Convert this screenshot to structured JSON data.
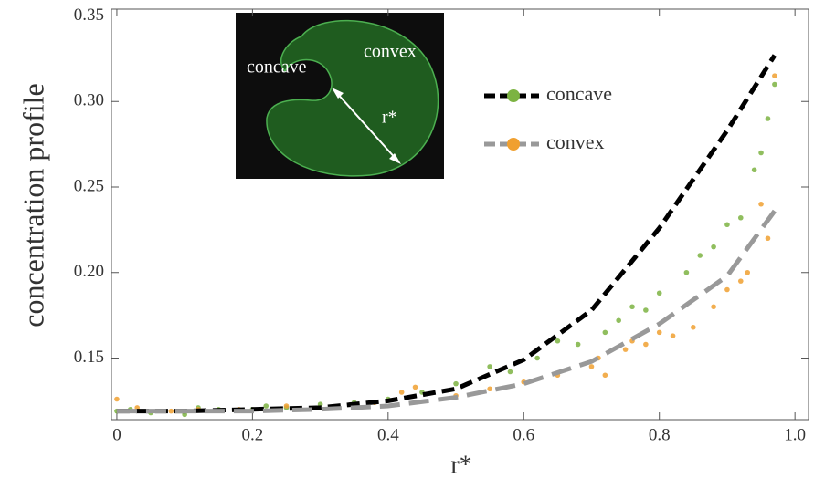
{
  "chart_data": {
    "type": "scatter",
    "y_label": "concentration profile",
    "x_label": "r*",
    "xlim": [
      -0.008,
      1.02
    ],
    "ylim": [
      0.114,
      0.354
    ],
    "xticks": [
      0,
      0.2,
      0.4,
      0.6,
      0.8,
      {
        "value": 1,
        "label": "1.0"
      }
    ],
    "yticks": [
      0.15,
      {
        "value": 0.2,
        "label": "0.20"
      },
      0.25,
      {
        "value": 0.3,
        "label": "0.30"
      },
      0.35
    ],
    "series": [
      {
        "name": "concave",
        "line_color": "#000000",
        "point_color": "#7cb342",
        "curve": {
          "x": [
            0,
            0.1,
            0.2,
            0.3,
            0.4,
            0.5,
            0.6,
            0.7,
            0.8,
            0.9,
            0.97
          ],
          "y": [
            0.119,
            0.119,
            0.12,
            0.121,
            0.125,
            0.132,
            0.149,
            0.178,
            0.226,
            0.283,
            0.327
          ]
        },
        "points": {
          "x": [
            0,
            0.02,
            0.05,
            0.1,
            0.12,
            0.15,
            0.2,
            0.22,
            0.25,
            0.3,
            0.35,
            0.4,
            0.45,
            0.5,
            0.55,
            0.58,
            0.62,
            0.65,
            0.68,
            0.72,
            0.74,
            0.76,
            0.78,
            0.8,
            0.84,
            0.86,
            0.88,
            0.9,
            0.92,
            0.94,
            0.95,
            0.96,
            0.97
          ],
          "y": [
            0.119,
            0.12,
            0.118,
            0.117,
            0.121,
            0.12,
            0.12,
            0.122,
            0.121,
            0.123,
            0.124,
            0.126,
            0.13,
            0.135,
            0.145,
            0.142,
            0.15,
            0.16,
            0.158,
            0.165,
            0.172,
            0.18,
            0.178,
            0.188,
            0.2,
            0.21,
            0.215,
            0.228,
            0.232,
            0.26,
            0.27,
            0.29,
            0.31
          ]
        }
      },
      {
        "name": "convex",
        "line_color": "#999999",
        "point_color": "#f0a030",
        "curve": {
          "x": [
            0,
            0.1,
            0.2,
            0.3,
            0.4,
            0.5,
            0.6,
            0.7,
            0.8,
            0.9,
            0.97
          ],
          "y": [
            0.119,
            0.119,
            0.119,
            0.12,
            0.122,
            0.127,
            0.135,
            0.148,
            0.17,
            0.198,
            0.236
          ]
        },
        "points": {
          "x": [
            0,
            0.03,
            0.08,
            0.12,
            0.18,
            0.25,
            0.32,
            0.38,
            0.42,
            0.44,
            0.5,
            0.55,
            0.6,
            0.65,
            0.7,
            0.71,
            0.72,
            0.75,
            0.76,
            0.78,
            0.8,
            0.82,
            0.85,
            0.88,
            0.9,
            0.92,
            0.93,
            0.95,
            0.96,
            0.97
          ],
          "y": [
            0.126,
            0.121,
            0.119,
            0.12,
            0.12,
            0.122,
            0.121,
            0.124,
            0.13,
            0.133,
            0.128,
            0.132,
            0.136,
            0.14,
            0.145,
            0.15,
            0.14,
            0.155,
            0.16,
            0.158,
            0.165,
            0.163,
            0.168,
            0.18,
            0.19,
            0.195,
            0.2,
            0.24,
            0.22,
            0.315
          ]
        }
      }
    ],
    "inset": {
      "labels": [
        "concave",
        "convex",
        "r*"
      ]
    }
  }
}
